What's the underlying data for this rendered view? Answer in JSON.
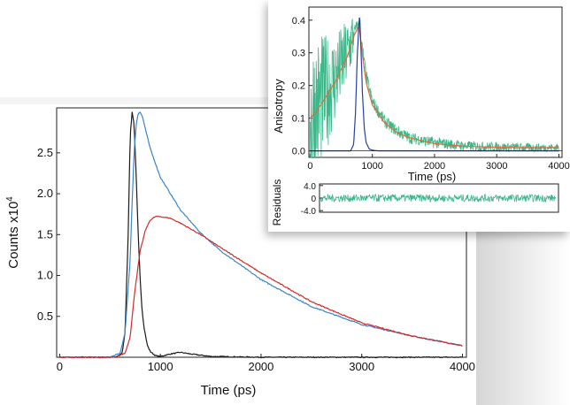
{
  "chart_data": [
    {
      "type": "line",
      "title": "",
      "xlabel": "Time (ps)",
      "ylabel": "Counts x10",
      "ylabel_superscript": "4",
      "xlim": [
        -30,
        4040
      ],
      "ylim": [
        0,
        3.05
      ],
      "xticks": [
        0,
        1000,
        2000,
        3000,
        4000
      ],
      "xtick_labels": [
        "0",
        "1000",
        "2000",
        "3000",
        "4000"
      ],
      "yticks": [
        0.5,
        1.0,
        1.5,
        2.0,
        2.5
      ],
      "ytick_labels": [
        "0.5",
        "1.0",
        "1.5",
        "2.0",
        "2.5"
      ],
      "grid": false,
      "series": [
        {
          "color": "#1a1a1a",
          "x": [
            0,
            560,
            620,
            650,
            680,
            700,
            720,
            740,
            760,
            780,
            800,
            820,
            840,
            870,
            900,
            950,
            1000,
            1100,
            1200,
            1300,
            1500,
            2000,
            3000,
            4000
          ],
          "values": [
            0.0,
            0.0,
            0.05,
            0.3,
            1.5,
            2.7,
            3.0,
            2.85,
            2.2,
            1.5,
            0.95,
            0.55,
            0.35,
            0.15,
            0.07,
            0.02,
            0.01,
            0.04,
            0.06,
            0.04,
            0.01,
            0.0,
            0.0,
            0.0
          ]
        },
        {
          "color": "#3a86c8",
          "x": [
            0,
            500,
            600,
            650,
            700,
            720,
            740,
            760,
            780,
            800,
            820,
            850,
            900,
            1000,
            1200,
            1400,
            1600,
            2000,
            2500,
            3000,
            3500,
            4000
          ],
          "values": [
            0.0,
            0.0,
            0.05,
            0.3,
            1.2,
            1.9,
            2.5,
            2.85,
            2.98,
            3.0,
            2.95,
            2.8,
            2.55,
            2.2,
            1.8,
            1.52,
            1.3,
            0.95,
            0.62,
            0.4,
            0.26,
            0.14
          ]
        },
        {
          "color": "#d42a2a",
          "x": [
            0,
            550,
            650,
            700,
            750,
            800,
            850,
            900,
            950,
            1000,
            1100,
            1200,
            1400,
            1600,
            2000,
            2500,
            3000,
            3500,
            4000
          ],
          "values": [
            0.0,
            0.0,
            0.05,
            0.25,
            0.85,
            1.3,
            1.55,
            1.68,
            1.72,
            1.72,
            1.7,
            1.64,
            1.5,
            1.34,
            1.03,
            0.68,
            0.42,
            0.26,
            0.14
          ]
        }
      ]
    },
    {
      "type": "line",
      "title": "",
      "xlabel": "Time (ps)",
      "ylabel": "Anisotropy",
      "xlim": [
        -20,
        4050
      ],
      "ylim": [
        -0.02,
        0.44
      ],
      "xticks": [
        0,
        1000,
        2000,
        3000,
        4000
      ],
      "xtick_labels": [
        "0",
        "1000",
        "2000",
        "3000",
        "4000"
      ],
      "yticks": [
        0.0,
        0.1,
        0.2,
        0.3,
        0.4
      ],
      "ytick_labels": [
        "0.0",
        "0.1",
        "0.2",
        "0.3",
        "0.4"
      ],
      "grid": false,
      "series": [
        {
          "color": "#3db78a",
          "style": "noisy",
          "x": [
            0,
            200,
            400,
            500,
            600,
            650,
            700,
            750,
            780,
            800,
            850,
            900,
            1000,
            1200,
            1400,
            1600,
            2000,
            2500,
            3000,
            3500,
            4000
          ],
          "values": [
            0.1,
            0.16,
            0.22,
            0.26,
            0.3,
            0.33,
            0.36,
            0.38,
            0.39,
            0.37,
            0.3,
            0.23,
            0.15,
            0.09,
            0.06,
            0.04,
            0.025,
            0.015,
            0.012,
            0.01,
            0.01
          ]
        },
        {
          "color": "#e36a3a",
          "x": [
            0,
            100,
            200,
            300,
            400,
            500,
            600,
            650,
            700,
            750,
            780,
            800,
            850,
            900,
            1000,
            1200,
            1400,
            1600,
            2000,
            2500,
            3000,
            3500,
            4000
          ],
          "values": [
            0.1,
            0.12,
            0.15,
            0.18,
            0.21,
            0.25,
            0.29,
            0.32,
            0.35,
            0.37,
            0.38,
            0.36,
            0.28,
            0.21,
            0.14,
            0.085,
            0.055,
            0.04,
            0.022,
            0.014,
            0.011,
            0.01,
            0.01
          ]
        },
        {
          "color": "#2a3fa5",
          "x": [
            0,
            650,
            700,
            730,
            760,
            790,
            800,
            820,
            840,
            870,
            900,
            950,
            1000,
            1100,
            4000
          ],
          "values": [
            0.0,
            0.0,
            0.02,
            0.12,
            0.3,
            0.41,
            0.4,
            0.3,
            0.18,
            0.07,
            0.025,
            0.006,
            0.002,
            0.0,
            0.0
          ]
        }
      ]
    },
    {
      "type": "line",
      "title": "",
      "xlabel": "",
      "ylabel": "Residuals",
      "xlim": [
        -20,
        4050
      ],
      "ylim": [
        -4.5,
        4.5
      ],
      "yticks": [
        -4.0,
        0,
        4.0
      ],
      "ytick_labels": [
        "-4.0",
        "0",
        "4.0"
      ],
      "grid": false,
      "series": [
        {
          "color": "#3db78a",
          "style": "noisy",
          "x": [
            0,
            4000
          ],
          "values": [
            0,
            0
          ],
          "noise_amplitude": 1.2
        }
      ]
    }
  ]
}
